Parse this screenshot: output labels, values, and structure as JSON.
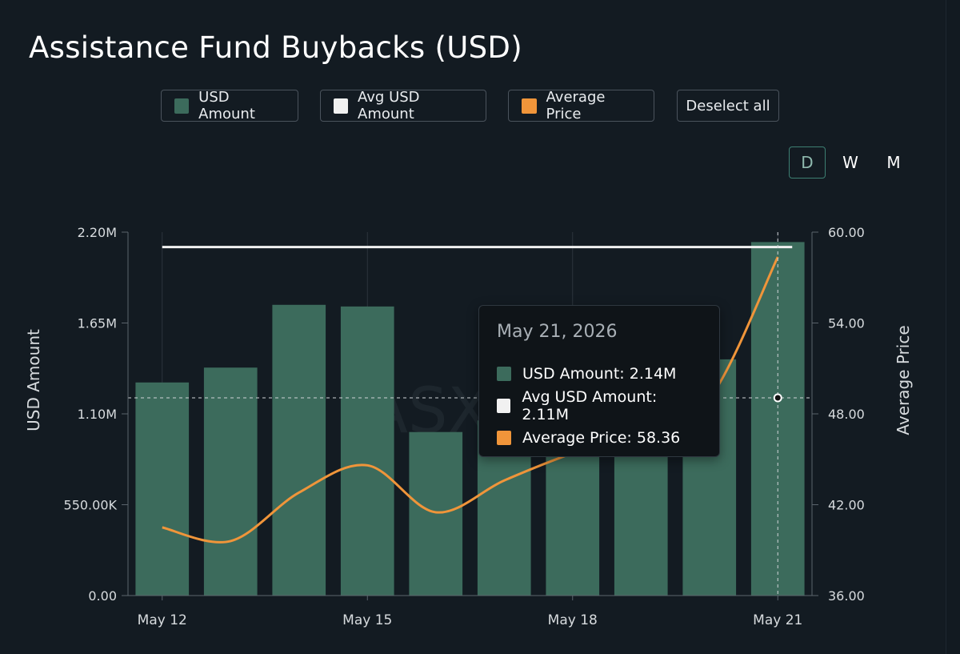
{
  "title": "Assistance Fund Buybacks (USD)",
  "legend": [
    {
      "label": "USD Amount",
      "color": "#3c6b5c"
    },
    {
      "label": "Avg USD Amount",
      "color": "#f1f1f1"
    },
    {
      "label": "Average Price",
      "color": "#f0953a"
    }
  ],
  "deselect_label": "Deselect all",
  "periods": [
    "D",
    "W",
    "M"
  ],
  "active_period": "D",
  "tooltip": {
    "date": "May 21, 2026",
    "rows": [
      {
        "text": "USD Amount: 2.14M",
        "color": "#3c6b5c"
      },
      {
        "text": "Avg USD Amount: 2.11M",
        "color": "#f1f1f1"
      },
      {
        "text": "Average Price: 58.36",
        "color": "#f0953a"
      }
    ]
  },
  "chart_data": {
    "type": "bar",
    "categories": [
      "May 12",
      "May 13",
      "May 14",
      "May 15",
      "May 16",
      "May 17",
      "May 18",
      "May 19",
      "May 20",
      "May 21"
    ],
    "x_tick_labels": [
      "May 12",
      "May 15",
      "May 18",
      "May 21"
    ],
    "series": [
      {
        "name": "USD Amount",
        "type": "bar",
        "axis": "left",
        "color": "#3c6b5c",
        "values": [
          1.29,
          1.38,
          1.76,
          1.75,
          0.99,
          1.06,
          1.14,
          1.21,
          1.43,
          2.14
        ]
      },
      {
        "name": "Avg USD Amount",
        "type": "line",
        "axis": "left",
        "color": "#f1f1f1",
        "values": [
          2.11,
          2.11,
          2.11,
          2.11,
          2.11,
          2.11,
          2.11,
          2.11,
          2.11,
          2.11
        ]
      },
      {
        "name": "Average Price",
        "type": "line",
        "axis": "right",
        "color": "#f0953a",
        "values": [
          40.5,
          39.6,
          42.8,
          44.6,
          41.5,
          43.6,
          45.4,
          46.8,
          49.0,
          58.36
        ]
      }
    ],
    "ylabel": "USD Amount",
    "ylabel_right": "Average Price",
    "ylim": [
      0,
      2.2
    ],
    "ylim_right": [
      36,
      60
    ],
    "y_ticks": [
      0,
      0.55,
      1.1,
      1.65,
      2.2
    ],
    "y_tick_labels": [
      "0.00",
      "550.00K",
      "1.10M",
      "1.65M",
      "2.20M"
    ],
    "y_right_ticks": [
      36,
      42,
      48,
      54,
      60
    ],
    "y_right_tick_labels": [
      "36.00",
      "42.00",
      "48.00",
      "54.00",
      "60.00"
    ],
    "crosshair_index": 9,
    "watermark": "ASX"
  }
}
